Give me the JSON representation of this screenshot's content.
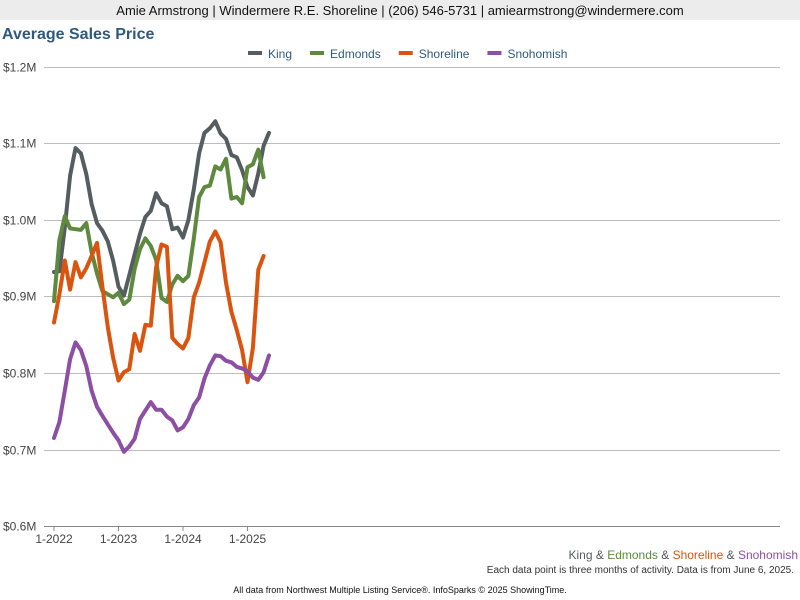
{
  "header": {
    "contact": "Amie Armstrong | Windermere R.E. Shoreline | (206) 546-5731 | amiearmstrong@windermere.com"
  },
  "footer": {
    "note": "Each data point is three months of activity. Data is from June 6, 2025.",
    "source": "All data from Northwest Multiple Listing Service®. InfoSparks © 2025 ShowingTime."
  },
  "chart_data": {
    "type": "line",
    "title": "Average Sales Price",
    "x_labels": [
      "1-2022",
      "1-2023",
      "1-2024",
      "1-2025"
    ],
    "x": [
      "2022-01",
      "2022-02",
      "2022-03",
      "2022-04",
      "2022-05",
      "2022-06",
      "2022-07",
      "2022-08",
      "2022-09",
      "2022-10",
      "2022-11",
      "2022-12",
      "2023-01",
      "2023-02",
      "2023-03",
      "2023-04",
      "2023-05",
      "2023-06",
      "2023-07",
      "2023-08",
      "2023-09",
      "2023-10",
      "2023-11",
      "2023-12",
      "2024-01",
      "2024-02",
      "2024-03",
      "2024-04",
      "2024-05",
      "2024-06",
      "2024-07",
      "2024-08",
      "2024-09",
      "2024-10",
      "2024-11",
      "2024-12",
      "2025-01",
      "2025-02",
      "2025-03",
      "2025-04",
      "2025-05"
    ],
    "y_ticks": [
      "$0.6M",
      "$0.7M",
      "$0.8M",
      "$0.9M",
      "$1.0M",
      "$1.1M",
      "$1.2M"
    ],
    "ylim": [
      0.6,
      1.2
    ],
    "y_unit": "$M",
    "grid": true,
    "legend": "top-center",
    "bottom_legend": [
      {
        "text": "King",
        "color": "#555d5e"
      },
      {
        "text": " & ",
        "color": "#555555"
      },
      {
        "text": "Edmonds",
        "color": "#5d8a3e"
      },
      {
        "text": " & ",
        "color": "#555555"
      },
      {
        "text": "Shoreline",
        "color": "#d9550f"
      },
      {
        "text": " & ",
        "color": "#555555"
      },
      {
        "text": "Snohomish",
        "color": "#8c4fa3"
      }
    ],
    "series": [
      {
        "name": "King",
        "color": "#555d5e",
        "values": [
          0.932,
          0.933,
          0.99,
          1.058,
          1.094,
          1.087,
          1.06,
          1.021,
          0.996,
          0.986,
          0.972,
          0.947,
          0.913,
          0.901,
          0.928,
          0.955,
          0.982,
          1.004,
          1.012,
          1.035,
          1.022,
          1.018,
          0.988,
          0.99,
          0.977,
          1.0,
          1.04,
          1.087,
          1.114,
          1.12,
          1.129,
          1.113,
          1.106,
          1.085,
          1.082,
          1.065,
          1.043,
          1.032,
          1.061,
          1.097,
          1.114
        ]
      },
      {
        "name": "Edmonds",
        "color": "#5d8a3e",
        "values": [
          0.894,
          0.974,
          1.005,
          0.989,
          0.988,
          0.987,
          0.996,
          0.958,
          0.93,
          0.907,
          0.903,
          0.899,
          0.905,
          0.89,
          0.896,
          0.936,
          0.962,
          0.976,
          0.966,
          0.948,
          0.898,
          0.893,
          0.916,
          0.927,
          0.92,
          0.927,
          0.976,
          1.03,
          1.043,
          1.045,
          1.07,
          1.066,
          1.08,
          1.028,
          1.03,
          1.022,
          1.069,
          1.073,
          1.092,
          1.056,
          null
        ]
      },
      {
        "name": "Shoreline",
        "color": "#d9550f",
        "values": [
          0.866,
          0.903,
          0.947,
          0.909,
          0.945,
          0.925,
          0.937,
          0.953,
          0.97,
          0.913,
          0.86,
          0.82,
          0.79,
          0.801,
          0.805,
          0.851,
          0.829,
          0.863,
          0.862,
          0.938,
          0.968,
          0.965,
          0.846,
          0.838,
          0.832,
          0.846,
          0.899,
          0.918,
          0.945,
          0.972,
          0.985,
          0.971,
          0.918,
          0.88,
          0.856,
          0.83,
          0.788,
          0.833,
          0.935,
          0.953,
          null
        ]
      },
      {
        "name": "Snohomish",
        "color": "#8c4fa3",
        "values": [
          0.715,
          0.736,
          0.777,
          0.818,
          0.84,
          0.83,
          0.809,
          0.777,
          0.756,
          0.744,
          0.733,
          0.722,
          0.712,
          0.697,
          0.704,
          0.714,
          0.74,
          0.751,
          0.762,
          0.752,
          0.752,
          0.743,
          0.738,
          0.725,
          0.729,
          0.74,
          0.758,
          0.768,
          0.793,
          0.81,
          0.823,
          0.822,
          0.816,
          0.814,
          0.808,
          0.806,
          0.802,
          0.794,
          0.791,
          0.801,
          0.823
        ]
      }
    ]
  }
}
